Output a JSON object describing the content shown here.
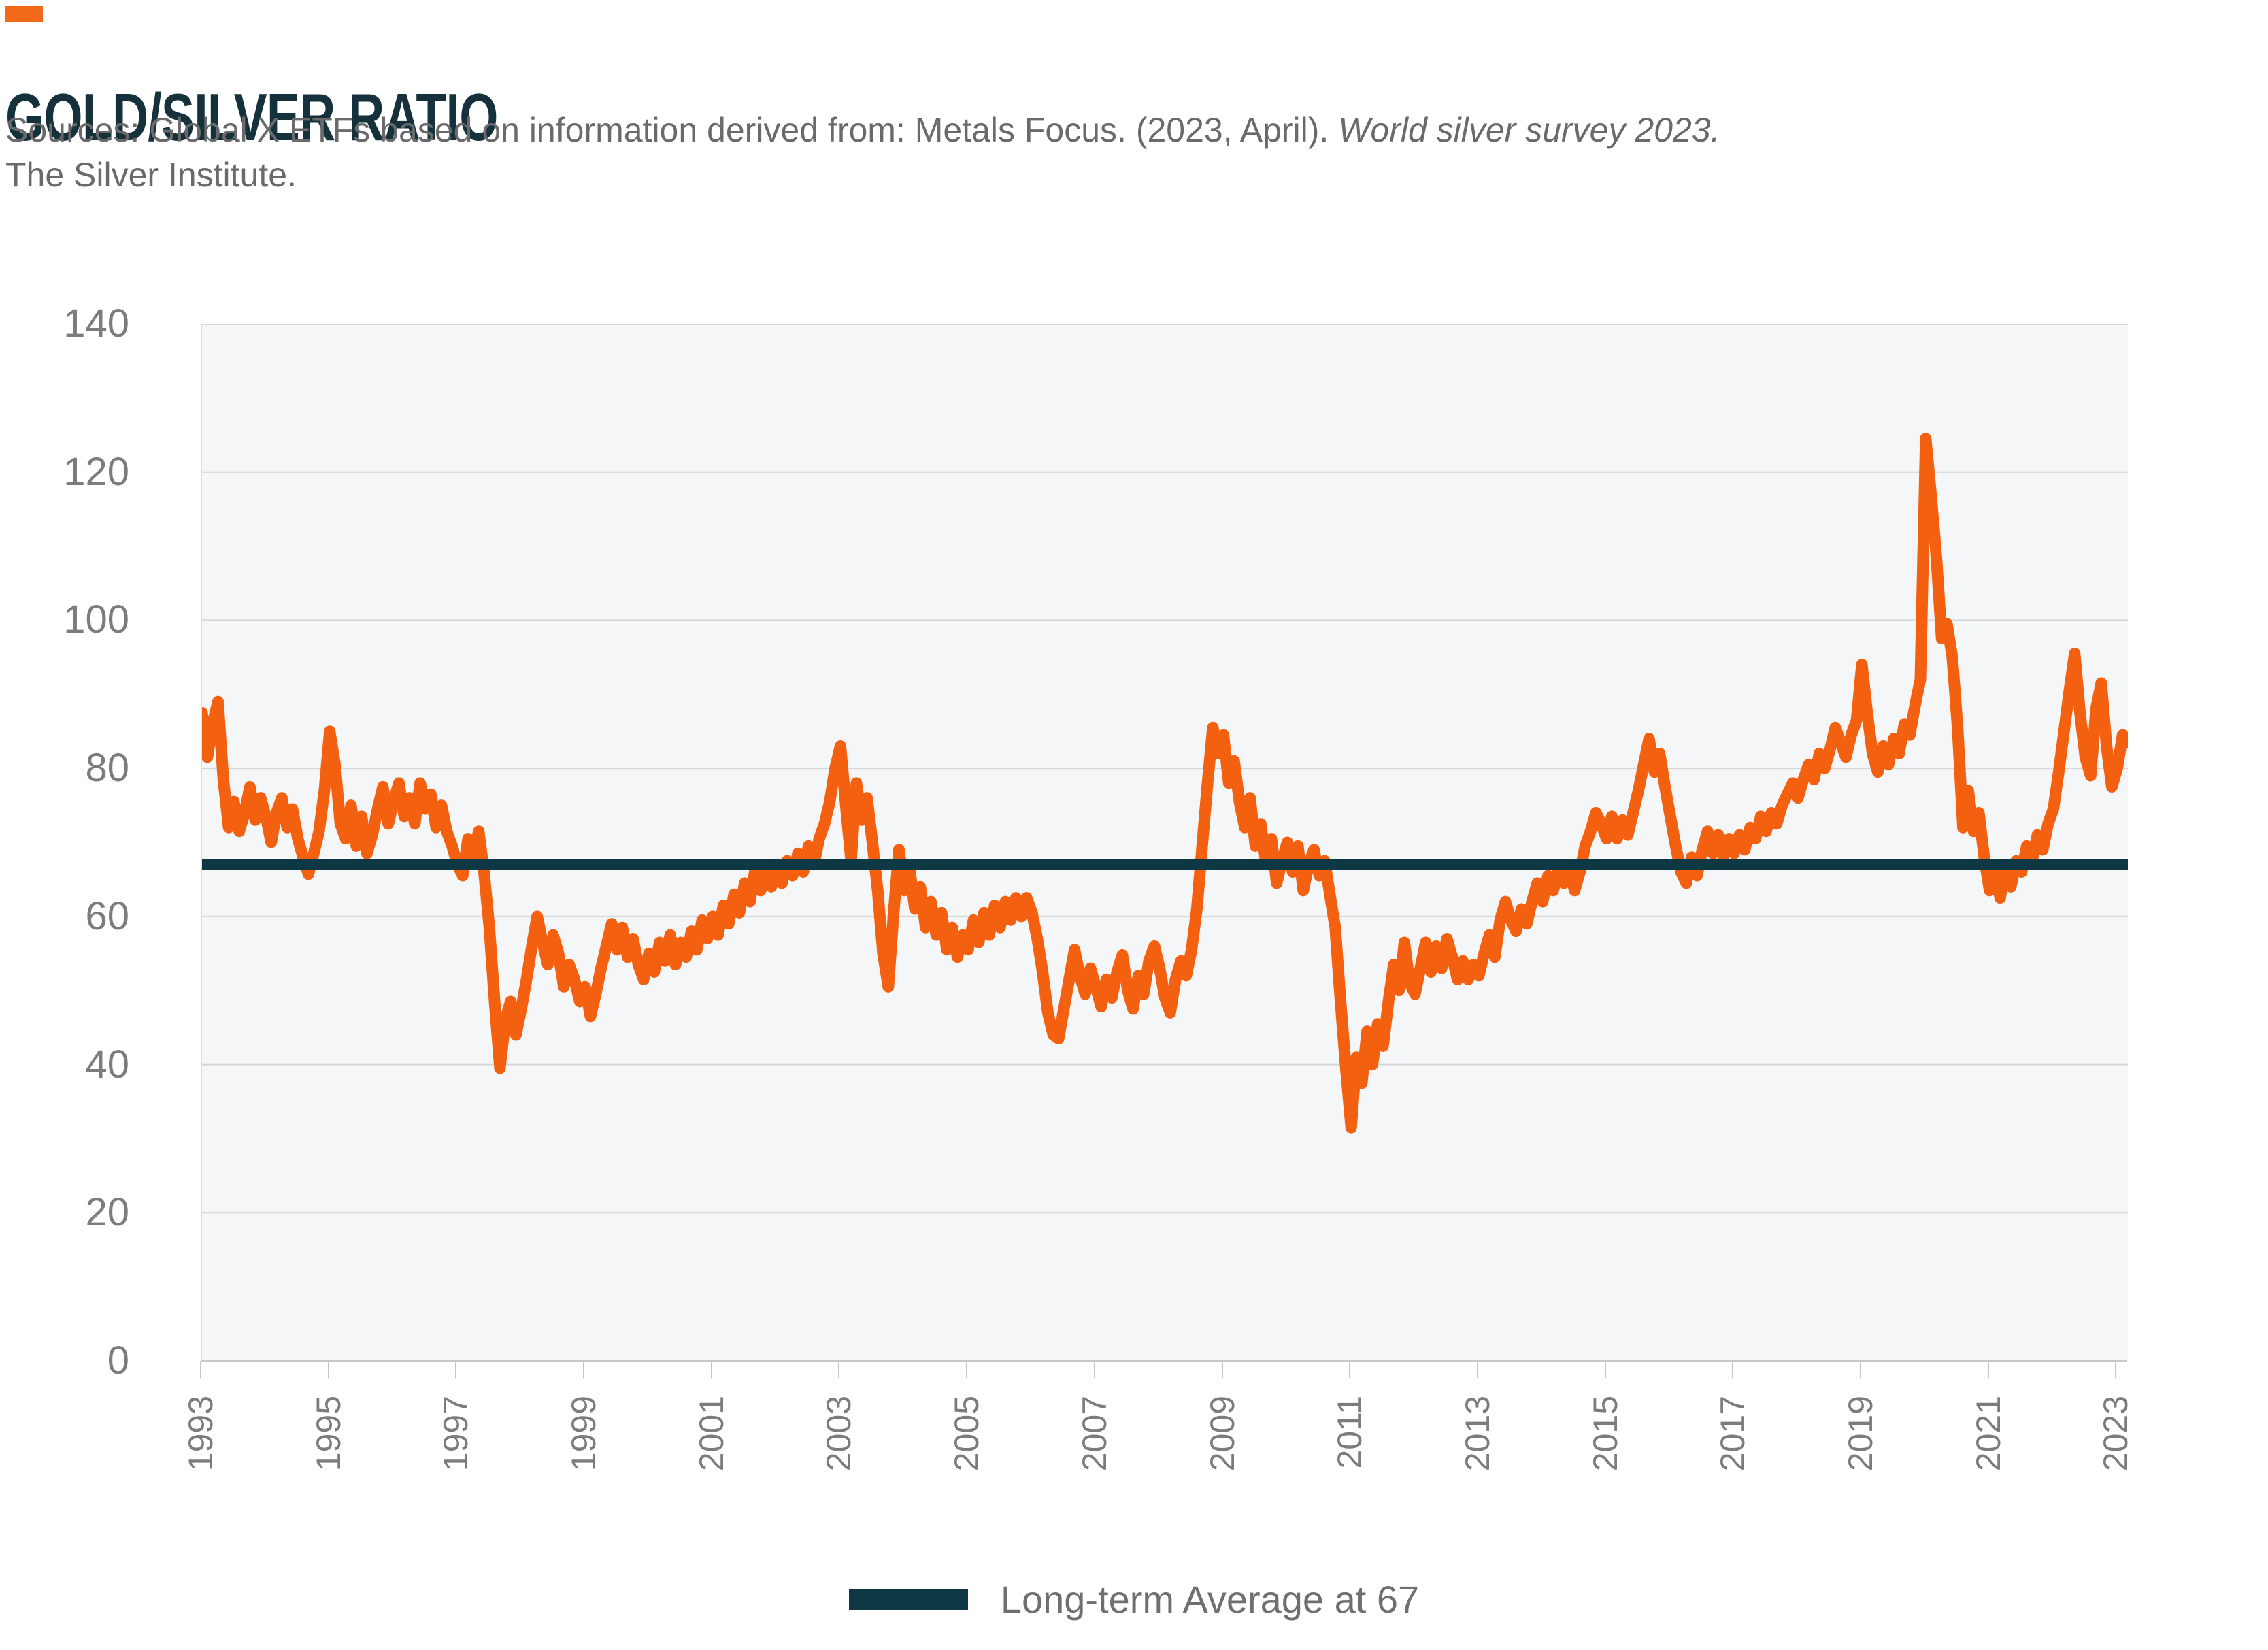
{
  "header": {
    "accent_color": "#F2691C",
    "title": "GOLD/SILVER RATIO",
    "title_color": "#15323C",
    "sources_line1_normal": "Sources: Global X ETFs based on information derived from: Metals Focus. (2023, April). ",
    "sources_line1_italic": "World silver survey 2023.",
    "sources_line2": "The Silver Institute."
  },
  "legend": {
    "label": "Long-term Average at 67",
    "swatch_color": "#0E3944"
  },
  "chart_data": {
    "type": "line",
    "title": "GOLD/SILVER RATIO",
    "xlabel": "",
    "ylabel": "",
    "x_domain": [
      1993,
      2023.1667
    ],
    "ylim": [
      0,
      140
    ],
    "y_ticks": [
      0,
      20,
      40,
      60,
      80,
      100,
      120,
      140
    ],
    "x_ticks": [
      1993,
      1995,
      1997,
      1999,
      2001,
      2003,
      2005,
      2007,
      2009,
      2011,
      2013,
      2015,
      2017,
      2019,
      2021,
      2023
    ],
    "grid": true,
    "plot_bg": "#F5F6F8",
    "grid_color": "#D4D6D8",
    "legend_position": "bottom",
    "average_line": {
      "value": 67,
      "color": "#0E3944",
      "width": 16,
      "label": "Long-term Average at 67"
    },
    "series": [
      {
        "name": "Gold/Silver Ratio",
        "color": "#F3600F",
        "stroke_width": 17,
        "start_year": 1993,
        "points_per_year": 12,
        "values": [
          87.5,
          81.5,
          86.0,
          89.0,
          78.5,
          72.0,
          75.5,
          71.5,
          74.0,
          77.5,
          73.0,
          76.0,
          73.5,
          70.0,
          74.0,
          76.0,
          72.0,
          74.5,
          70.5,
          68.0,
          65.7,
          68.5,
          71.5,
          77.0,
          85.0,
          80.5,
          72.5,
          70.5,
          75.0,
          69.5,
          73.5,
          68.5,
          71.0,
          74.5,
          77.5,
          72.5,
          75.5,
          78.0,
          73.5,
          76.0,
          72.5,
          78.0,
          74.5,
          76.5,
          72.0,
          75.0,
          71.5,
          69.5,
          67.0,
          65.5,
          70.5,
          68.0,
          71.5,
          66.0,
          58.5,
          48.5,
          39.5,
          46.0,
          48.5,
          44.0,
          47.5,
          51.5,
          56.0,
          60.0,
          56.5,
          53.5,
          57.5,
          55.0,
          50.5,
          53.5,
          51.5,
          48.5,
          50.5,
          46.5,
          49.5,
          53.0,
          56.0,
          59.0,
          55.5,
          58.5,
          54.5,
          57.0,
          53.5,
          51.5,
          55.0,
          52.5,
          56.5,
          54.0,
          57.5,
          53.5,
          56.5,
          54.5,
          58.0,
          55.5,
          59.5,
          57.0,
          60.0,
          57.5,
          61.5,
          59.0,
          63.0,
          60.5,
          64.5,
          62.0,
          66.5,
          63.5,
          66.0,
          64.0,
          67.0,
          64.5,
          67.5,
          65.5,
          68.5,
          66.0,
          69.5,
          67.0,
          70.5,
          72.5,
          75.5,
          80.0,
          83.0,
          75.0,
          67.5,
          78.0,
          73.0,
          76.0,
          70.0,
          63.5,
          55.0,
          50.5,
          60.5,
          69.0,
          63.5,
          66.5,
          61.0,
          64.0,
          58.5,
          62.0,
          57.5,
          60.5,
          55.5,
          58.5,
          54.5,
          57.5,
          55.5,
          59.5,
          56.5,
          60.5,
          57.5,
          61.5,
          58.5,
          62.0,
          59.5,
          62.5,
          60.0,
          62.5,
          60.5,
          57.0,
          52.5,
          47.0,
          44.0,
          43.5,
          47.5,
          51.5,
          55.5,
          52.0,
          49.5,
          53.0,
          50.5,
          47.8,
          51.5,
          49.0,
          52.5,
          54.8,
          50.0,
          47.5,
          52.0,
          49.5,
          54.0,
          56.0,
          53.0,
          49.0,
          47.0,
          51.5,
          54.0,
          52.0,
          55.5,
          61.0,
          69.5,
          78.0,
          85.5,
          82.0,
          84.5,
          78.0,
          81.0,
          75.5,
          72.0,
          76.0,
          69.5,
          72.5,
          67.0,
          70.5,
          64.5,
          67.5,
          70.0,
          66.0,
          69.5,
          63.5,
          67.0,
          69.0,
          65.5,
          67.5,
          63.0,
          58.5,
          48.5,
          39.5,
          31.5,
          41.0,
          37.5,
          44.5,
          40.0,
          45.5,
          42.5,
          48.5,
          53.5,
          50.0,
          56.5,
          51.0,
          49.5,
          53.0,
          56.5,
          52.5,
          56.0,
          53.0,
          57.0,
          54.5,
          51.5,
          54.0,
          51.5,
          53.5,
          52.0,
          55.0,
          57.5,
          54.5,
          59.5,
          62.0,
          59.5,
          58.0,
          61.0,
          59.0,
          62.0,
          64.5,
          62.0,
          65.5,
          63.5,
          66.5,
          64.5,
          66.5,
          63.5,
          66.0,
          69.5,
          71.5,
          74.0,
          72.5,
          70.5,
          73.5,
          70.5,
          73.0,
          71.0,
          74.0,
          77.0,
          80.5,
          84.0,
          79.5,
          82.0,
          77.5,
          73.5,
          69.5,
          66.0,
          64.5,
          68.0,
          65.5,
          69.0,
          71.5,
          68.5,
          71.0,
          68.0,
          70.5,
          68.5,
          71.0,
          69.0,
          72.0,
          70.5,
          73.5,
          71.5,
          74.0,
          72.5,
          75.0,
          76.5,
          78.0,
          76.0,
          78.5,
          80.5,
          78.5,
          82.0,
          80.0,
          82.5,
          85.5,
          83.5,
          81.5,
          84.5,
          86.5,
          94.0,
          87.5,
          82.0,
          79.5,
          83.0,
          80.5,
          84.0,
          82.0,
          86.0,
          84.5,
          88.5,
          92.0,
          124.5,
          117.0,
          108.5,
          97.5,
          99.5,
          95.0,
          85.5,
          72.0,
          77.0,
          71.5,
          74.0,
          68.0,
          63.5,
          66.5,
          62.5,
          67.0,
          64.0,
          67.5,
          66.0,
          69.5,
          67.5,
          71.0,
          69.0,
          72.5,
          74.5,
          79.5,
          85.0,
          90.5,
          95.5,
          87.5,
          81.5,
          79.0,
          88.0,
          91.5,
          83.0,
          77.5,
          80.0,
          84.5,
          83.5
        ]
      }
    ]
  }
}
